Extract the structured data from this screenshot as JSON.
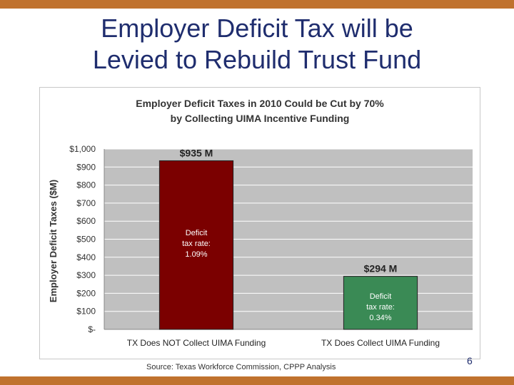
{
  "slide": {
    "title_line1": "Employer Deficit Tax will be",
    "title_line2": "Levied to Rebuild Trust Fund",
    "source": "Source: Texas Workforce Commission, CPPP Analysis",
    "page_number": "6"
  },
  "colors": {
    "band": "#c0722e",
    "title": "#1f2d6e",
    "plot_bg": "#c0c0c0",
    "bar_not_collect": "#7b0000",
    "bar_collect": "#3a8a55"
  },
  "chart_data": {
    "type": "bar",
    "title_line1": "Employer Deficit Taxes in 2010 Could be Cut by 70%",
    "title_line2": "by Collecting UIMA Incentive Funding",
    "ylabel": "Employer Deficit Taxes ($M)",
    "xlabel": "",
    "categories": [
      "TX Does NOT Collect UIMA Funding",
      "TX Does Collect UIMA Funding"
    ],
    "values": [
      935,
      294
    ],
    "data_labels": [
      "$935 M",
      "$294 M"
    ],
    "bar_annotations": [
      [
        "Deficit",
        "tax rate:",
        "1.09%"
      ],
      [
        "Deficit",
        "tax rate:",
        "0.34%"
      ]
    ],
    "ylim": [
      0,
      1000
    ],
    "yticks": [
      0,
      100,
      200,
      300,
      400,
      500,
      600,
      700,
      800,
      900,
      1000
    ],
    "ytick_labels": [
      "$-",
      "$100",
      "$200",
      "$300",
      "$400",
      "$500",
      "$600",
      "$700",
      "$800",
      "$900",
      "$1,000"
    ],
    "grid": true,
    "legend": "none"
  }
}
